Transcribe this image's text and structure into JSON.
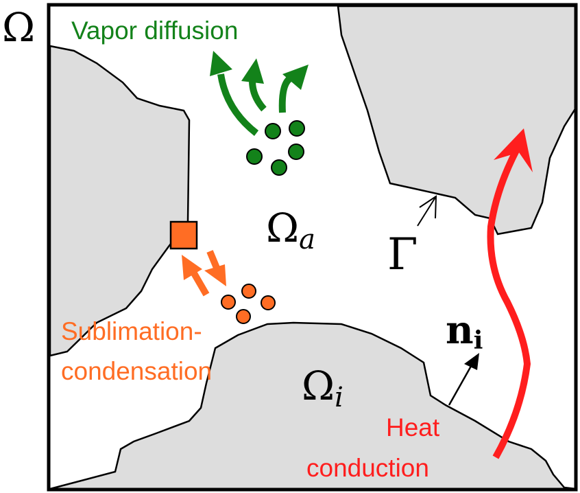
{
  "labels": {
    "domain": "Ω",
    "air_domain": "Ω",
    "air_sub": "a",
    "ice_domain": "Ω",
    "ice_sub": "i",
    "interface": "Γ",
    "normal": "n",
    "normal_sub": "i",
    "vapor": "Vapor diffusion",
    "sublimation_1": "Sublimation-",
    "sublimation_2": "condensation",
    "heat_1": "Heat",
    "heat_2": "conduction"
  },
  "colors": {
    "grain_fill": "#dddddd",
    "vapor": "#13821a",
    "sublimation": "#ff6d24",
    "heat": "#ff1e1e",
    "outline": "#000000"
  }
}
